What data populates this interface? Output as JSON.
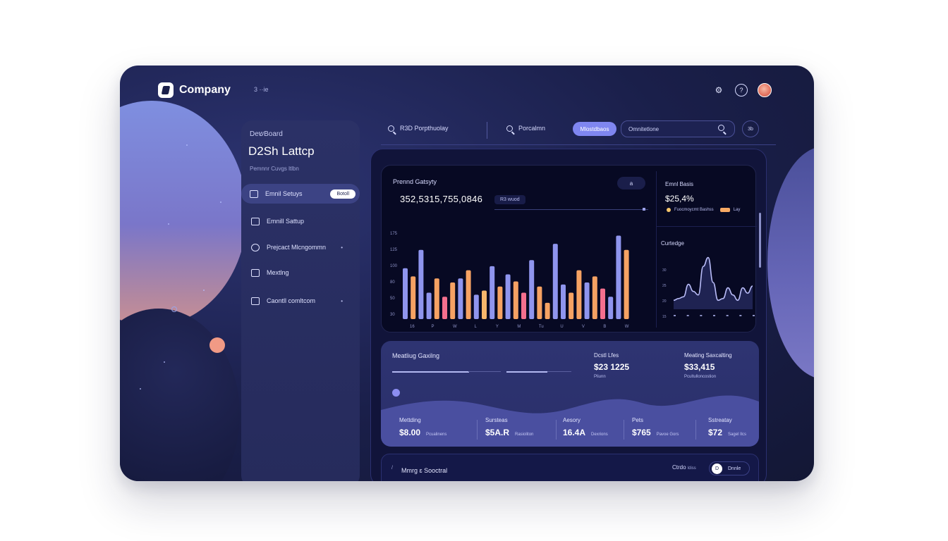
{
  "brand": {
    "name": "Company",
    "logo_icon": "company-logo-icon"
  },
  "topbar": {
    "crumb": "3 ··ie",
    "icons": [
      "settings-icon",
      "help-icon",
      "avatar"
    ]
  },
  "sidebar": {
    "kicker": "DeשBoard",
    "title": "D2Sh Lattcp",
    "subtitle": "Pemnnr Cuvgs ltlbn",
    "items": [
      {
        "label": "Emnil Setuys",
        "icon": "email-icon",
        "badge": "Botoll",
        "active": true
      },
      {
        "label": "Emnill Sattup",
        "icon": "inbox-icon",
        "chevron": ""
      },
      {
        "label": "Prejcact Mlcngommn",
        "icon": "project-icon",
        "chevron": "•"
      },
      {
        "label": "Mextlng",
        "icon": "meeting-icon",
        "chevron": ""
      },
      {
        "label": "Caontll comltcom",
        "icon": "contact-icon",
        "chevron": "•"
      }
    ]
  },
  "search": {
    "item1": "R3D Porpthuolay",
    "item2": "Porcalmn",
    "pill": "Mlostdbaos",
    "placeholder": "Omnitetlone",
    "ext": "3b"
  },
  "chart_card": {
    "title": "Prennd Gatsyty",
    "big_value": "352,5315,755,0846",
    "tag": "R3 wuod",
    "button": "a",
    "yticks": [
      "175",
      "125",
      "100",
      "80",
      "50",
      "30"
    ],
    "xlabels": [
      "16",
      "P",
      "W",
      "L",
      "Y",
      "M",
      "Tu",
      "U",
      "V",
      "B",
      "W"
    ]
  },
  "chart_data": {
    "type": "bar",
    "title": "Prennd Gatsyty",
    "colors": [
      "#8f95ee",
      "#f6a263",
      "#f46f8e",
      "#f7b66c"
    ],
    "series_values": [
      50,
      42,
      68,
      26,
      40,
      22,
      36,
      40,
      48,
      24,
      28,
      52,
      32,
      44,
      37,
      26,
      58,
      32,
      16,
      74,
      34,
      26,
      48,
      36,
      42,
      30,
      22,
      82,
      68
    ],
    "series_colors": [
      0,
      1,
      0,
      0,
      1,
      2,
      1,
      0,
      1,
      0,
      3,
      0,
      1,
      0,
      1,
      2,
      0,
      1,
      1,
      0,
      0,
      1,
      1,
      0,
      1,
      2,
      0,
      0,
      1
    ],
    "ylim": [
      0,
      90
    ]
  },
  "mini_card": {
    "title": "Emnl Basis",
    "value": "$25,4%",
    "legend1": "Fuocmoycmt Bashss",
    "legend2": "Lay"
  },
  "spark": {
    "title": "Curtedge",
    "yticks": [
      "30",
      "25",
      "20",
      "15"
    ],
    "values": [
      10,
      12,
      14,
      28,
      20,
      16,
      48,
      58,
      30,
      10,
      12,
      24,
      16,
      10,
      24,
      18,
      26
    ],
    "color": "#b9bcf8"
  },
  "stats": {
    "title": "Meatliug Gaxilng",
    "progress1": 0.7,
    "progress2": 0.63,
    "col1": {
      "label": "Dcstl Lfes",
      "value": "$23 1225",
      "sub": "Pliunn"
    },
    "col2": {
      "label": "Meating Saxcalting",
      "value": "$33,415",
      "sub": "Pcultulloncostion"
    },
    "metrics": [
      {
        "label": "Mettding",
        "value": "$8.00",
        "sub": "Pcualinens"
      },
      {
        "label": "Sursteas",
        "value": "$5A.R",
        "sub": "Rasioliton"
      },
      {
        "label": "Aesory",
        "value": "16.4A",
        "sub": "Dexrions"
      },
      {
        "label": "Pets",
        "value": "$765",
        "sub": "Pavoe Gors"
      },
      {
        "label": "Sstreatay",
        "value": "$72",
        "sub": "Sagel Ilcs"
      }
    ]
  },
  "bottom": {
    "mark": "/",
    "title": "Mmrg ɛ Sooctral",
    "label": "Ctrdo",
    "label2": "ldiss",
    "toggle_knob": "D",
    "toggle_text": "Dnnle"
  }
}
